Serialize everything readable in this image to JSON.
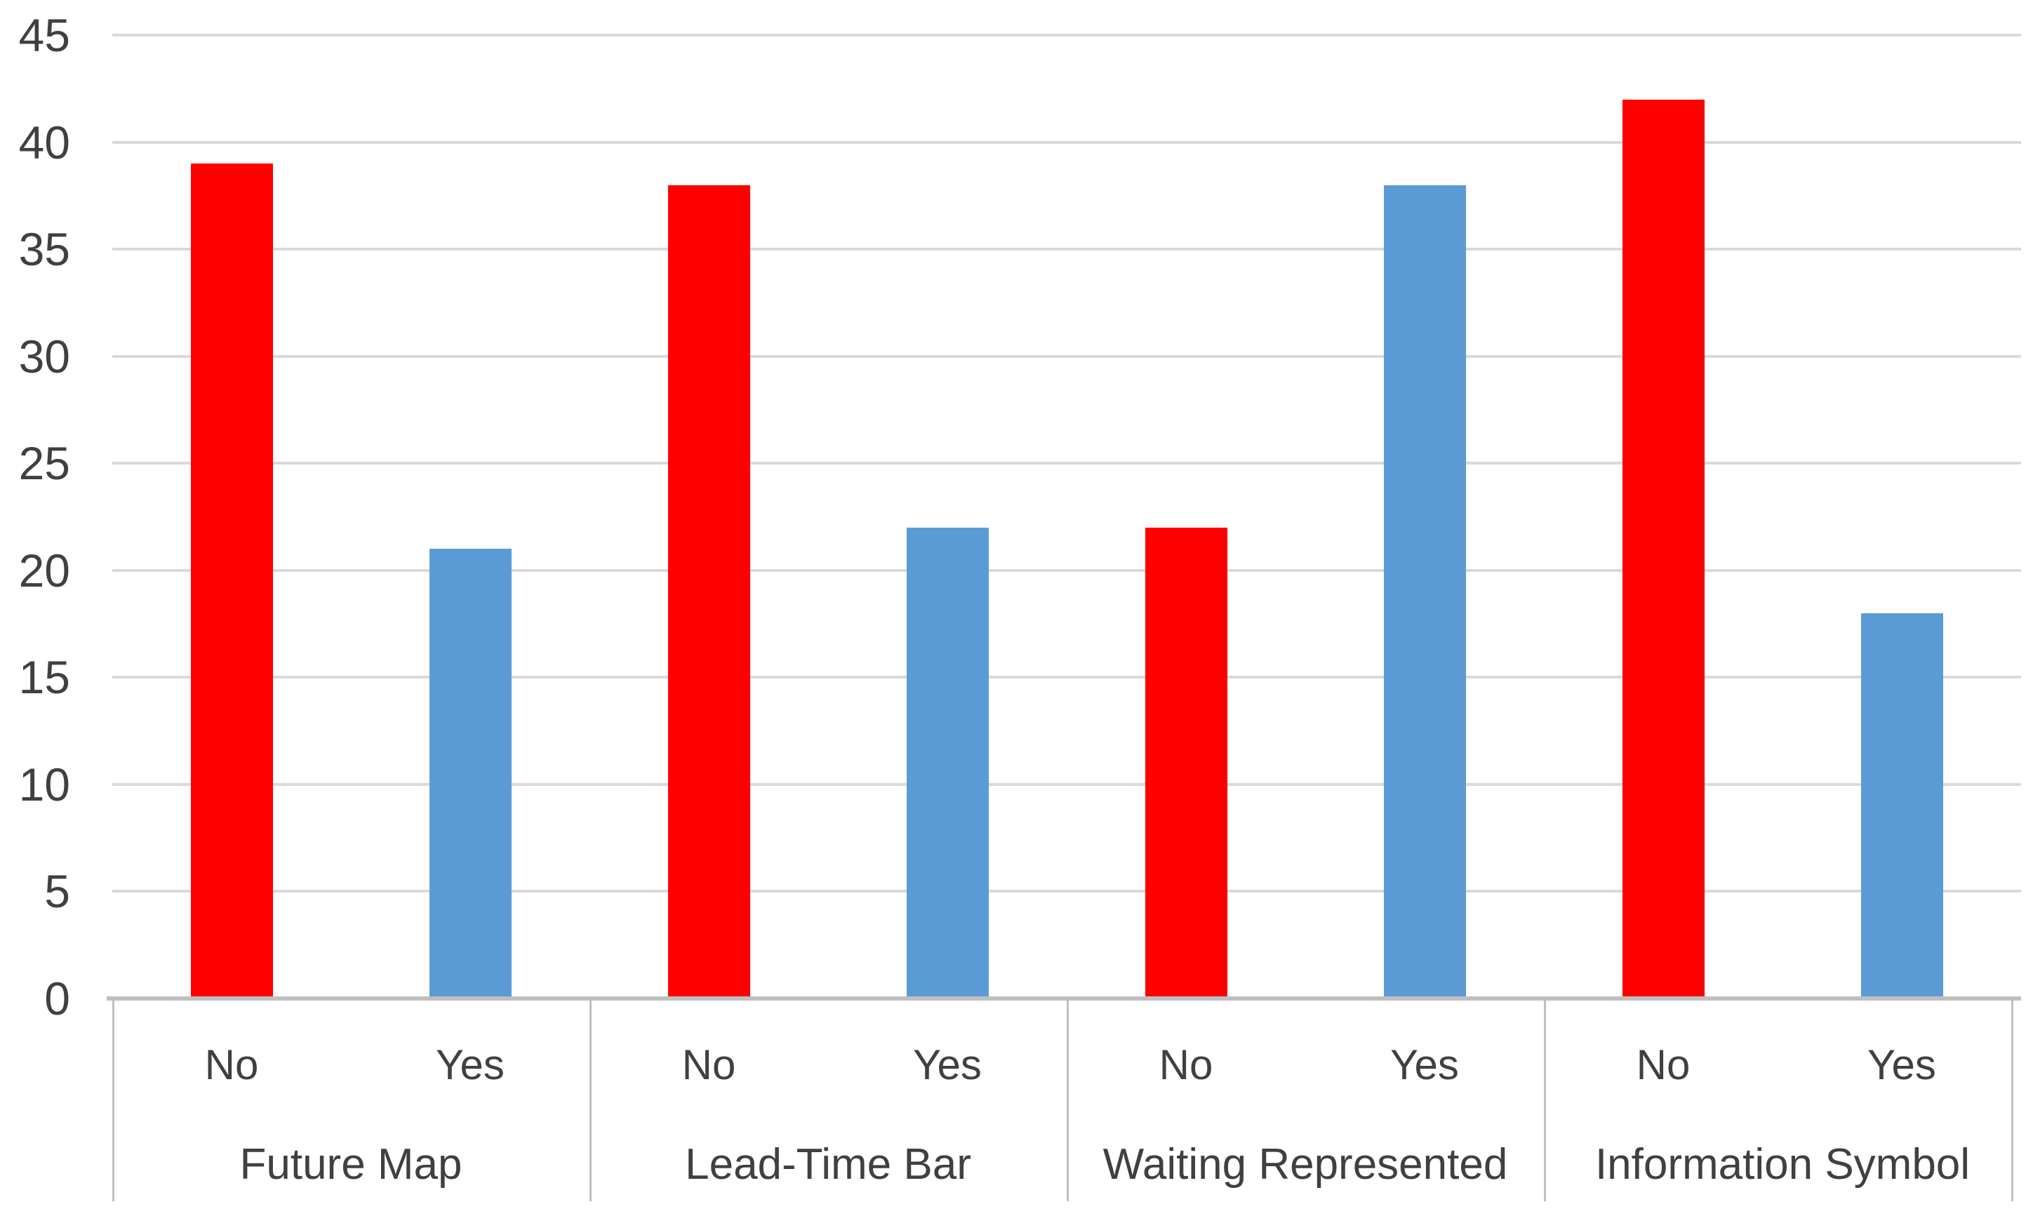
{
  "chart_data": {
    "type": "bar",
    "title": "",
    "xlabel": "",
    "ylabel": "",
    "groups": [
      "Future Map",
      "Lead-Time Bar",
      "Waiting Represented",
      "Information Symbol"
    ],
    "categories_per_group": [
      "No",
      "Yes"
    ],
    "series": [
      {
        "name": "No",
        "color": "#FF0000",
        "values": [
          39,
          38,
          22,
          42
        ]
      },
      {
        "name": "Yes",
        "color": "#5B9BD5",
        "values": [
          21,
          22,
          38,
          18
        ]
      }
    ],
    "ylim": [
      0,
      45
    ],
    "ytick_step": 5,
    "ytick_labels": [
      "0",
      "5",
      "10",
      "15",
      "20",
      "25",
      "30",
      "35",
      "40",
      "45"
    ],
    "grid": true,
    "legend_position": "none",
    "colors": {
      "bar_no": "#FF0000",
      "bar_yes": "#5B9BD5",
      "gridline": "#D9D9D9",
      "axis_line": "#BFBFBF",
      "text": "#404040",
      "background": "#FFFFFF"
    }
  }
}
